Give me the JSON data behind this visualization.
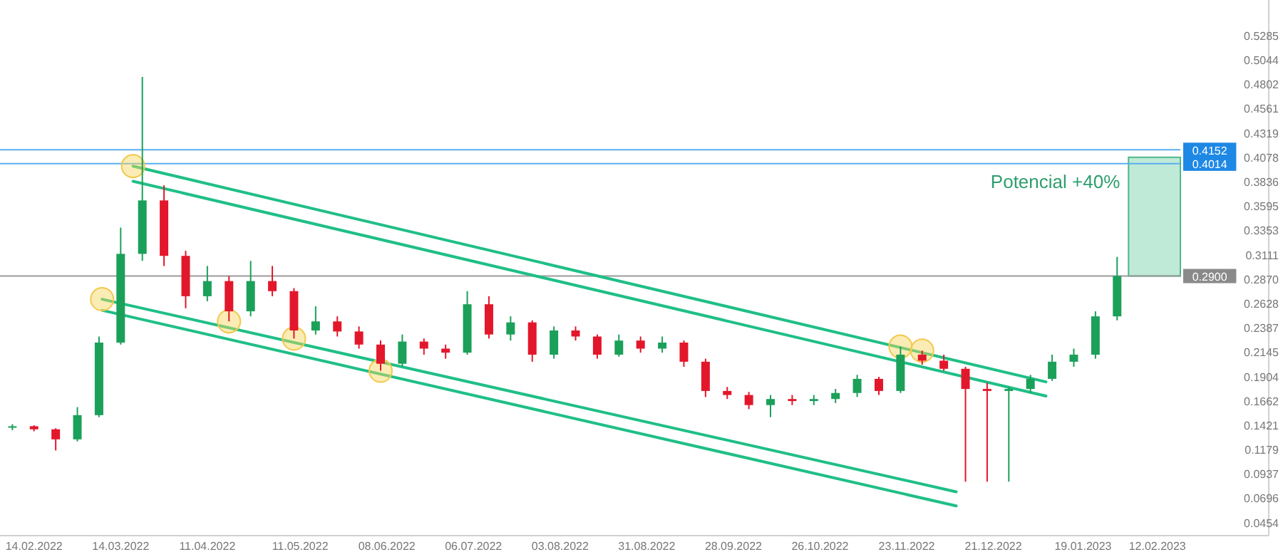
{
  "chart_data": {
    "type": "candlestick",
    "x": [
      "2022-02-07",
      "2022-02-14",
      "2022-02-21",
      "2022-02-28",
      "2022-03-07",
      "2022-03-14",
      "2022-03-21",
      "2022-03-28",
      "2022-04-04",
      "2022-04-11",
      "2022-04-18",
      "2022-04-25",
      "2022-05-02",
      "2022-05-09",
      "2022-05-16",
      "2022-05-23",
      "2022-05-30",
      "2022-06-06",
      "2022-06-13",
      "2022-06-20",
      "2022-06-27",
      "2022-07-04",
      "2022-07-11",
      "2022-07-18",
      "2022-07-25",
      "2022-08-01",
      "2022-08-08",
      "2022-08-15",
      "2022-08-22",
      "2022-08-29",
      "2022-09-05",
      "2022-09-12",
      "2022-09-19",
      "2022-09-26",
      "2022-10-03",
      "2022-10-10",
      "2022-10-17",
      "2022-10-24",
      "2022-10-31",
      "2022-11-07",
      "2022-11-14",
      "2022-11-21",
      "2022-11-28",
      "2022-12-05",
      "2022-12-12",
      "2022-12-19",
      "2022-12-26",
      "2023-01-02",
      "2023-01-09",
      "2023-01-16",
      "2023-01-23",
      "2023-01-30"
    ],
    "ohlc": [
      [
        0.14,
        0.143,
        0.137,
        0.141
      ],
      [
        0.141,
        0.142,
        0.136,
        0.138
      ],
      [
        0.138,
        0.139,
        0.117,
        0.128
      ],
      [
        0.128,
        0.16,
        0.126,
        0.152
      ],
      [
        0.152,
        0.23,
        0.15,
        0.224
      ],
      [
        0.224,
        0.338,
        0.222,
        0.312
      ],
      [
        0.312,
        0.4875,
        0.305,
        0.365
      ],
      [
        0.365,
        0.38,
        0.3,
        0.31
      ],
      [
        0.31,
        0.315,
        0.258,
        0.27
      ],
      [
        0.27,
        0.3,
        0.265,
        0.285
      ],
      [
        0.285,
        0.29,
        0.245,
        0.255
      ],
      [
        0.255,
        0.305,
        0.25,
        0.285
      ],
      [
        0.285,
        0.3,
        0.27,
        0.275
      ],
      [
        0.275,
        0.278,
        0.228,
        0.236
      ],
      [
        0.236,
        0.26,
        0.232,
        0.245
      ],
      [
        0.245,
        0.25,
        0.23,
        0.235
      ],
      [
        0.235,
        0.24,
        0.218,
        0.222
      ],
      [
        0.222,
        0.226,
        0.196,
        0.203
      ],
      [
        0.203,
        0.232,
        0.2,
        0.225
      ],
      [
        0.225,
        0.228,
        0.212,
        0.218
      ],
      [
        0.218,
        0.222,
        0.208,
        0.214
      ],
      [
        0.214,
        0.275,
        0.212,
        0.262
      ],
      [
        0.262,
        0.27,
        0.228,
        0.232
      ],
      [
        0.232,
        0.25,
        0.226,
        0.244
      ],
      [
        0.244,
        0.246,
        0.205,
        0.212
      ],
      [
        0.212,
        0.24,
        0.208,
        0.236
      ],
      [
        0.236,
        0.24,
        0.226,
        0.23
      ],
      [
        0.23,
        0.232,
        0.208,
        0.212
      ],
      [
        0.212,
        0.232,
        0.21,
        0.226
      ],
      [
        0.226,
        0.23,
        0.214,
        0.218
      ],
      [
        0.218,
        0.23,
        0.214,
        0.224
      ],
      [
        0.224,
        0.226,
        0.2,
        0.205
      ],
      [
        0.205,
        0.208,
        0.17,
        0.176
      ],
      [
        0.176,
        0.18,
        0.168,
        0.172
      ],
      [
        0.172,
        0.175,
        0.158,
        0.162
      ],
      [
        0.162,
        0.172,
        0.15,
        0.168
      ],
      [
        0.168,
        0.172,
        0.162,
        0.166
      ],
      [
        0.166,
        0.172,
        0.162,
        0.168
      ],
      [
        0.168,
        0.178,
        0.164,
        0.174
      ],
      [
        0.174,
        0.192,
        0.17,
        0.188
      ],
      [
        0.188,
        0.19,
        0.172,
        0.176
      ],
      [
        0.176,
        0.22,
        0.174,
        0.212
      ],
      [
        0.212,
        0.216,
        0.202,
        0.206
      ],
      [
        0.206,
        0.212,
        0.196,
        0.198
      ],
      [
        0.198,
        0.2,
        0.086,
        0.178
      ],
      [
        0.178,
        0.184,
        0.086,
        0.176
      ],
      [
        0.176,
        0.18,
        0.086,
        0.178
      ],
      [
        0.178,
        0.192,
        0.174,
        0.188
      ],
      [
        0.188,
        0.212,
        0.186,
        0.205
      ],
      [
        0.205,
        0.218,
        0.2,
        0.212
      ],
      [
        0.212,
        0.255,
        0.208,
        0.25
      ],
      [
        0.25,
        0.309,
        0.246,
        0.29
      ]
    ],
    "colors": [
      "#1ba05a",
      "#e3172b",
      "#e3172b",
      "#1ba05a",
      "#1ba05a",
      "#1ba05a",
      "#1ba05a",
      "#e3172b",
      "#e3172b",
      "#1ba05a",
      "#e3172b",
      "#1ba05a",
      "#e3172b",
      "#e3172b",
      "#1ba05a",
      "#e3172b",
      "#e3172b",
      "#e3172b",
      "#1ba05a",
      "#e3172b",
      "#e3172b",
      "#1ba05a",
      "#e3172b",
      "#1ba05a",
      "#e3172b",
      "#1ba05a",
      "#e3172b",
      "#e3172b",
      "#1ba05a",
      "#e3172b",
      "#1ba05a",
      "#e3172b",
      "#e3172b",
      "#e3172b",
      "#e3172b",
      "#1ba05a",
      "#e3172b",
      "#1ba05a",
      "#1ba05a",
      "#1ba05a",
      "#e3172b",
      "#1ba05a",
      "#e3172b",
      "#e3172b",
      "#e3172b",
      "#e3172b",
      "#1ba05a",
      "#1ba05a",
      "#1ba05a",
      "#1ba05a",
      "#1ba05a",
      "#1ba05a"
    ],
    "series": [
      {
        "type": "line",
        "color": "#1fbf86",
        "x": [
          "2022-03-18",
          "2023-01-07"
        ],
        "values": [
          0.399,
          0.185
        ]
      },
      {
        "type": "line",
        "color": "#1fbf86",
        "x": [
          "2022-03-18",
          "2023-01-07"
        ],
        "values": [
          0.384,
          0.171
        ]
      },
      {
        "type": "line",
        "color": "#1fbf86",
        "x": [
          "2022-03-08",
          "2022-12-09"
        ],
        "values": [
          0.267,
          0.076
        ]
      },
      {
        "type": "line",
        "color": "#1fbf86",
        "x": [
          "2022-03-08",
          "2022-12-09"
        ],
        "values": [
          0.256,
          0.062
        ]
      },
      {
        "type": "scatter",
        "color": "#f7d55c",
        "marker": "circle",
        "x": [
          "2022-03-08",
          "2022-03-18",
          "2022-04-18",
          "2022-05-09",
          "2022-06-06",
          "2022-11-21",
          "2022-11-28"
        ],
        "values": [
          0.267,
          0.399,
          0.245,
          0.228,
          0.196,
          0.22,
          0.216
        ]
      }
    ],
    "xlim": [
      "2022-02-03",
      "2023-03-20"
    ],
    "xticks": [
      {
        "value": "2022-02-14",
        "label": "14.02.2022"
      },
      {
        "value": "2022-03-14",
        "label": "14.03.2022"
      },
      {
        "value": "2022-04-11",
        "label": "11.04.2022"
      },
      {
        "value": "2022-05-11",
        "label": "11.05.2022"
      },
      {
        "value": "2022-06-08",
        "label": "08.06.2022"
      },
      {
        "value": "2022-07-06",
        "label": "06.07.2022"
      },
      {
        "value": "2022-08-03",
        "label": "03.08.2022"
      },
      {
        "value": "2022-08-31",
        "label": "31.08.2022"
      },
      {
        "value": "2022-09-28",
        "label": "28.09.2022"
      },
      {
        "value": "2022-10-26",
        "label": "26.10.2022"
      },
      {
        "value": "2022-11-23",
        "label": "23.11.2022"
      },
      {
        "value": "2022-12-21",
        "label": "21.12.2022"
      },
      {
        "value": "2023-01-19",
        "label": "19.01.2023"
      },
      {
        "value": "2023-02-12",
        "label": "12.02.2023"
      }
    ],
    "ylim": [
      0.0325,
      0.5638
    ],
    "yticks": [
      {
        "value": 0.0454,
        "label": "0.0454"
      },
      {
        "value": 0.0696,
        "label": "0.0696"
      },
      {
        "value": 0.0937,
        "label": "0.0937"
      },
      {
        "value": 0.1179,
        "label": "0.1179"
      },
      {
        "value": 0.1421,
        "label": "0.1421"
      },
      {
        "value": 0.1662,
        "label": "0.1662"
      },
      {
        "value": 0.1904,
        "label": "0.1904"
      },
      {
        "value": 0.2145,
        "label": "0.2145"
      },
      {
        "value": 0.2387,
        "label": "0.2387"
      },
      {
        "value": 0.2628,
        "label": "0.2628"
      },
      {
        "value": 0.287,
        "label": "0.2870"
      },
      {
        "value": 0.3111,
        "label": "0.3111"
      },
      {
        "value": 0.3353,
        "label": "0.3353"
      },
      {
        "value": 0.3595,
        "label": "0.3595"
      },
      {
        "value": 0.3836,
        "label": "0.3836"
      },
      {
        "value": 0.4078,
        "label": "0.4078"
      },
      {
        "value": 0.4319,
        "label": "0.4319"
      },
      {
        "value": 0.4561,
        "label": "0.4561"
      },
      {
        "value": 0.4802,
        "label": "0.4802"
      },
      {
        "value": 0.5044,
        "label": "0.5044"
      },
      {
        "value": 0.5285,
        "label": "0.5285"
      }
    ],
    "ref_lines": [
      {
        "axis": "y",
        "value": 0.4152,
        "label": "0.4152",
        "color": "#5aaef0"
      },
      {
        "axis": "y",
        "value": 0.4014,
        "label": "0.4014",
        "color": "#5aaef0"
      },
      {
        "axis": "y",
        "value": 0.29,
        "label": "0.2900",
        "color": "#9a9a9a"
      }
    ],
    "bands": [
      {
        "axis": "y",
        "from": 0.29,
        "to": 0.4078,
        "label": "Potencial +40%",
        "color": "#bfead7"
      }
    ],
    "grid": false
  }
}
